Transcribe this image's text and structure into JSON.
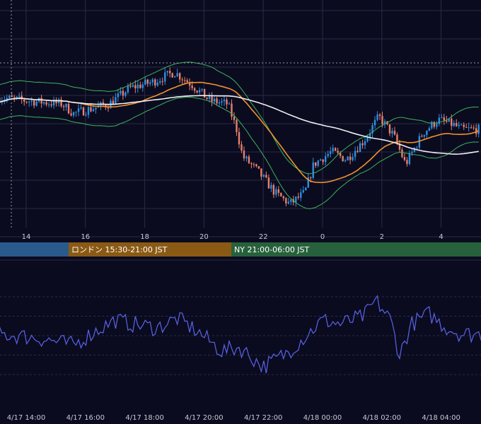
{
  "colors": {
    "background": "#0b0b20",
    "grid": "#2a2a45",
    "candle_up": "#2f8ee0",
    "candle_down": "#e8806a",
    "bollinger": "#3bb55a",
    "ma_short": "#f0922c",
    "ma_long": "#f0f0f0",
    "oscillator": "#5b63e8",
    "session_tokyo": "#2a5a8c",
    "session_london": "#8a5a14",
    "session_ny": "#27613c"
  },
  "main_axis": {
    "hour_ticks": [
      "14",
      "16",
      "18",
      "20",
      "22",
      "0",
      "2",
      "4"
    ]
  },
  "sessions": [
    {
      "label": "",
      "color_key": "session_tokyo"
    },
    {
      "label": "ロンドン 15:30-21:00 JST",
      "color_key": "session_london"
    },
    {
      "label": "NY 21:00-06:00 JST",
      "color_key": "session_ny"
    }
  ],
  "lower_axis": {
    "date_ticks": [
      "4/17 14:00",
      "4/17 16:00",
      "4/17 18:00",
      "4/17 20:00",
      "4/17 22:00",
      "4/18 00:00",
      "4/18 02:00",
      "4/18 04:00"
    ]
  },
  "chart_data": [
    {
      "type": "candlestick",
      "x_unit": "JST hour",
      "x_start": 13.1,
      "candle_minutes": 5,
      "close_track_x": [
        13.1,
        14.0,
        15.2,
        15.6,
        16.8,
        17.5,
        18.3,
        19.0,
        19.6,
        20.2,
        20.8,
        21.1,
        21.3,
        21.8,
        22.4,
        22.9,
        23.4,
        23.7,
        24.3,
        24.8,
        25.4,
        25.9,
        26.4,
        26.8,
        27.4,
        27.9,
        28.4,
        28.7
      ],
      "close_track_y": [
        0.72,
        0.7,
        0.68,
        0.62,
        0.68,
        0.78,
        0.82,
        0.88,
        0.8,
        0.7,
        0.68,
        0.52,
        0.35,
        0.26,
        0.12,
        0.05,
        0.12,
        0.3,
        0.38,
        0.33,
        0.45,
        0.6,
        0.48,
        0.3,
        0.5,
        0.58,
        0.55,
        0.52
      ],
      "bollinger_width": 0.16,
      "moving_averages": [
        "ma_short",
        "ma_long"
      ]
    },
    {
      "type": "line",
      "x_unit": "JST hour",
      "track_x": [
        13.1,
        14.2,
        14.8,
        15.6,
        16.3,
        17.0,
        17.6,
        18.4,
        19.1,
        19.8,
        20.6,
        21.2,
        22.0,
        22.8,
        23.3,
        24.0,
        24.6,
        25.4,
        25.8,
        26.3,
        26.6,
        27.0,
        27.6,
        28.1,
        28.7
      ],
      "track_y": [
        0.52,
        0.48,
        0.44,
        0.38,
        0.55,
        0.7,
        0.65,
        0.6,
        0.72,
        0.55,
        0.3,
        0.35,
        0.1,
        0.28,
        0.45,
        0.7,
        0.65,
        0.75,
        0.95,
        0.7,
        0.25,
        0.65,
        0.78,
        0.62,
        0.52
      ],
      "grid_levels": [
        0.0,
        0.25,
        0.5,
        0.75,
        1.0
      ]
    }
  ]
}
